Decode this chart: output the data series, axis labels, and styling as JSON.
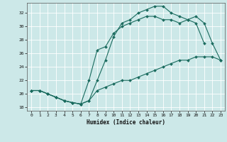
{
  "xlabel": "Humidex (Indice chaleur)",
  "background_color": "#cce8e8",
  "grid_color": "#ffffff",
  "line_color": "#1a6b5e",
  "xlim": [
    -0.5,
    23.5
  ],
  "ylim": [
    17.5,
    33.5
  ],
  "yticks": [
    18,
    20,
    22,
    24,
    26,
    28,
    30,
    32
  ],
  "xticks": [
    0,
    1,
    2,
    3,
    4,
    5,
    6,
    7,
    8,
    9,
    10,
    11,
    12,
    13,
    14,
    15,
    16,
    17,
    18,
    19,
    20,
    21,
    22,
    23
  ],
  "line1_x": [
    0,
    1,
    2,
    3,
    4,
    5,
    6,
    7,
    8,
    9,
    10,
    11,
    12,
    13,
    14,
    15,
    16,
    17,
    18,
    19,
    20,
    21,
    22,
    23
  ],
  "line1_y": [
    20.5,
    20.5,
    20.0,
    19.5,
    19.0,
    18.7,
    18.5,
    19.0,
    20.5,
    21.0,
    21.5,
    22.0,
    22.0,
    22.5,
    23.0,
    23.5,
    24.0,
    24.5,
    25.0,
    25.0,
    25.5,
    25.5,
    25.5,
    25.0
  ],
  "line2_x": [
    0,
    1,
    2,
    3,
    4,
    5,
    6,
    7,
    8,
    9,
    10,
    11,
    12,
    13,
    14,
    15,
    16,
    17,
    18,
    19,
    20,
    21
  ],
  "line2_y": [
    20.5,
    20.5,
    20.0,
    19.5,
    19.0,
    18.7,
    18.5,
    19.0,
    22.0,
    25.0,
    28.5,
    30.5,
    31.0,
    32.0,
    32.5,
    33.0,
    33.0,
    32.0,
    31.5,
    31.0,
    30.5,
    27.5
  ],
  "line3_x": [
    0,
    1,
    2,
    3,
    4,
    5,
    6,
    7,
    8,
    9,
    10,
    11,
    12,
    13,
    14,
    15,
    16,
    17,
    18,
    19,
    20,
    21,
    22,
    23
  ],
  "line3_y": [
    20.5,
    20.5,
    20.0,
    19.5,
    19.0,
    18.7,
    18.5,
    22.0,
    26.5,
    27.0,
    29.0,
    30.0,
    30.5,
    31.0,
    31.5,
    31.5,
    31.0,
    31.0,
    30.5,
    31.0,
    31.5,
    30.5,
    27.5,
    25.0
  ]
}
